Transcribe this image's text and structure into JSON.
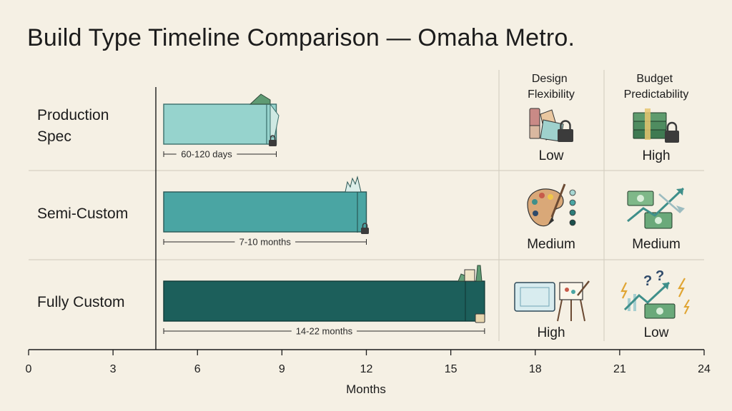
{
  "title": "Build Type Timeline Comparison — Omaha Metro.",
  "columns": {
    "design": [
      "Design",
      "Flexibility"
    ],
    "budget": [
      "Budget",
      "Predictability"
    ]
  },
  "chart_data": {
    "type": "bar",
    "orientation": "horizontal",
    "xlabel": "Months",
    "xlim": [
      0,
      24
    ],
    "xticks": [
      0,
      3,
      6,
      9,
      12,
      15,
      18,
      21,
      24
    ],
    "categories": [
      "Production Spec",
      "Semi-Custom",
      "Fully Custom"
    ],
    "category_lines": [
      [
        "Production",
        "Spec"
      ],
      [
        "Semi-Custom"
      ],
      [
        "Fully Custom"
      ]
    ],
    "bars": [
      {
        "start": 4.8,
        "end": 8.8,
        "label": "60-120 days",
        "color": "#96d3cd",
        "stroke": "#3a6e6a"
      },
      {
        "start": 4.8,
        "end": 12.0,
        "label": "7-10 months",
        "color": "#4aa5a3",
        "stroke": "#2a5755"
      },
      {
        "start": 4.8,
        "end": 16.2,
        "label": "14-22 months",
        "color": "#1c5f5b",
        "stroke": "#123b38"
      }
    ],
    "design_flexibility": [
      "Low",
      "Medium",
      "High"
    ],
    "budget_predictability": [
      "High",
      "Medium",
      "Low"
    ],
    "grid": false
  },
  "icons": {
    "design": [
      "swatch-lock-icon",
      "paint-palette-icon",
      "blueprint-easel-icon"
    ],
    "budget": [
      "money-stack-lock-icon",
      "money-arrows-icon",
      "money-uncertain-icon"
    ],
    "bar_end": [
      "house-lock-icon",
      "building-lock-icon",
      "estate-icon"
    ]
  }
}
